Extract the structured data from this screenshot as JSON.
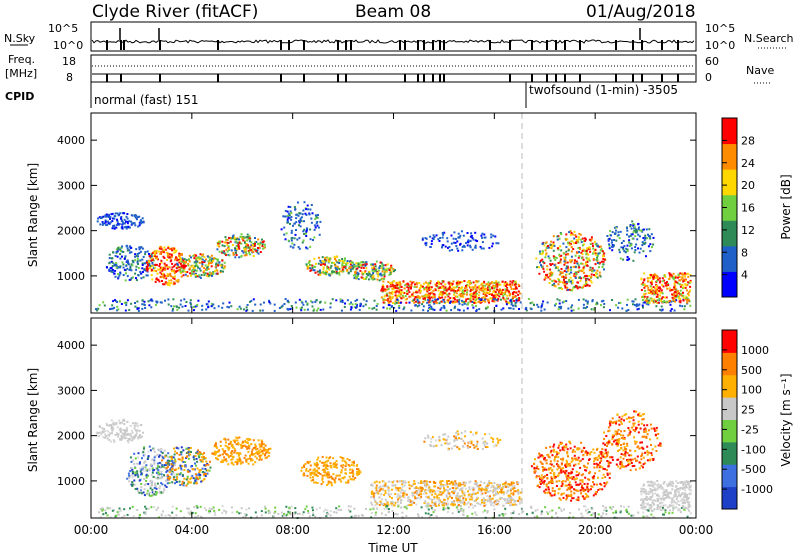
{
  "header": {
    "station": "Clyde River (fitACF)",
    "beam": "Beam 08",
    "date": "01/Aug/2018"
  },
  "status_panel": {
    "nsky_label": "N.Sky",
    "nsky_ticks": [
      "10^5",
      "10^0"
    ],
    "nsearch_label": "N.Search",
    "nsearch_ticks": [
      "10^5",
      "10^0"
    ],
    "freq_label": "Freq.",
    "freq_unit": "[MHz]",
    "freq_ticks": [
      "18",
      "8"
    ],
    "nave_label": "Nave",
    "nave_ticks": [
      "60",
      "0"
    ],
    "cpid_label": "CPID",
    "cpid_modes": [
      {
        "name": "normal (fast) 151"
      },
      {
        "name": "twofsound (1-min) -3505"
      }
    ]
  },
  "chart_data": [
    {
      "type": "heatmap",
      "title": "",
      "ylabel": "Slant Range [km]",
      "xlabel": "",
      "ylim": [
        180,
        4600
      ],
      "yticks": [
        1000,
        2000,
        3000,
        4000
      ],
      "xlim": [
        "00:00",
        "00:00 (+1 day)"
      ],
      "colorbar": {
        "label": "Power [dB]",
        "ticks": [
          "28",
          "24",
          "20",
          "16",
          "12",
          "8",
          "4"
        ],
        "colors": [
          "#0000ff",
          "#1e5fc8",
          "#2e8b57",
          "#6fcf3f",
          "#ffd700",
          "#ff8c00",
          "#ff0000"
        ]
      }
    },
    {
      "type": "heatmap",
      "title": "",
      "ylabel": "Slant Range [km]",
      "xlabel": "Time UT",
      "ylim": [
        180,
        4600
      ],
      "yticks": [
        1000,
        2000,
        3000,
        4000
      ],
      "xticks": [
        "00:00",
        "04:00",
        "08:00",
        "12:00",
        "16:00",
        "20:00",
        "00:00"
      ],
      "colorbar": {
        "label": "Velocity [m s⁻¹]",
        "ticks": [
          "1000",
          "500",
          "100",
          "25",
          "-25",
          "-100",
          "-500",
          "-1000"
        ],
        "colors": [
          "#1e3fc8",
          "#3d6fe0",
          "#2e8b57",
          "#6fcf3f",
          "#c8c8c8",
          "#ffb000",
          "#ff7f00",
          "#ff0000"
        ]
      }
    }
  ],
  "axis_labels": {
    "ylabel_top": "Slant Range [km]",
    "ylabel_bottom": "Slant Range [km]",
    "yticks": [
      "4000",
      "3000",
      "2000",
      "1000"
    ],
    "xticks": [
      "00:00",
      "04:00",
      "08:00",
      "12:00",
      "16:00",
      "20:00",
      "00:00"
    ],
    "xlabel": "Time UT",
    "power_label": "Power [dB]",
    "velocity_label": "Velocity [m s⁻¹]"
  }
}
